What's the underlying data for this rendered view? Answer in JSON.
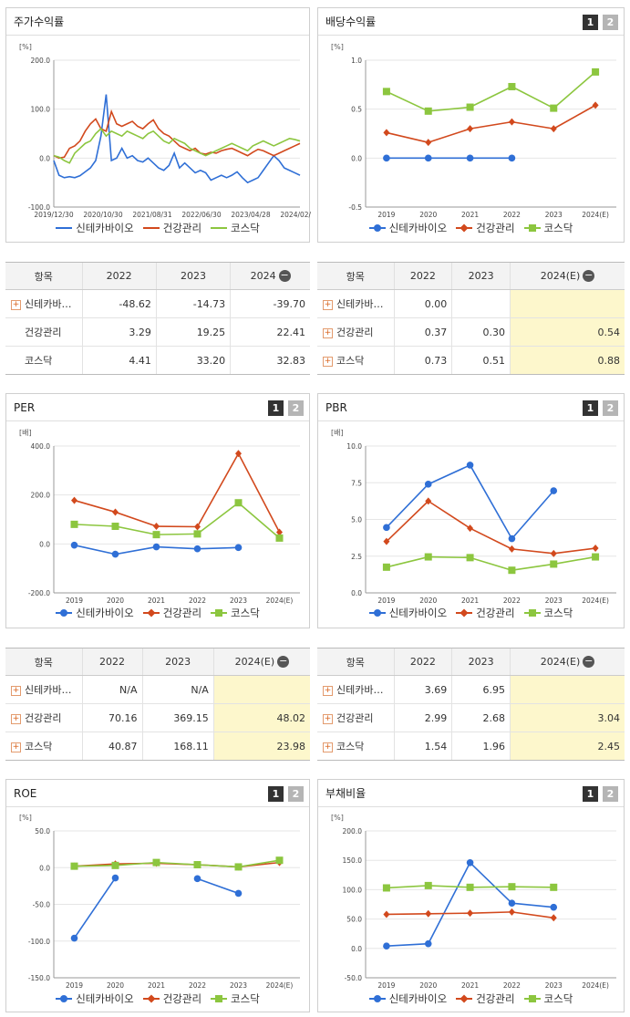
{
  "colors": {
    "blue": "#2f6fd6",
    "red": "#d2491d",
    "green": "#8cc63f"
  },
  "charts": [
    {
      "id": "stock",
      "title": "주가수익률",
      "unit": "[%]",
      "tabs": [],
      "chart_data": {
        "type": "line",
        "ylim": [
          -100,
          200
        ],
        "yticks": [
          "200.0",
          "100.0",
          "0.0",
          "-100.0"
        ],
        "xticks": [
          "2019/12/30",
          "2020/10/30",
          "2021/08/31",
          "2022/06/30",
          "2023/04/28",
          "2024/02/29"
        ],
        "series": [
          {
            "name": "신테카바이오",
            "color": "#2f6fd6",
            "values": [
              -5,
              -35,
              -40,
              -38,
              -40,
              -36,
              -28,
              -20,
              -5,
              45,
              130,
              -5,
              0,
              20,
              0,
              5,
              -5,
              -8,
              0,
              -10,
              -20,
              -25,
              -15,
              10,
              -20,
              -10,
              -20,
              -30,
              -25,
              -30,
              -45,
              -40,
              -35,
              -40,
              -35,
              -28,
              -40,
              -50,
              -45,
              -40,
              -25,
              -10,
              5,
              -5,
              -20,
              -25,
              -30,
              -35
            ]
          },
          {
            "name": "건강관리",
            "color": "#d2491d",
            "values": [
              5,
              0,
              2,
              20,
              25,
              35,
              55,
              70,
              80,
              60,
              55,
              95,
              70,
              65,
              70,
              75,
              65,
              60,
              70,
              78,
              60,
              50,
              45,
              35,
              25,
              20,
              15,
              20,
              10,
              8,
              12,
              10,
              15,
              18,
              20,
              15,
              10,
              5,
              12,
              18,
              15,
              10,
              5,
              10,
              15,
              20,
              25,
              30
            ]
          },
          {
            "name": "코스닥",
            "color": "#8cc63f",
            "values": [
              5,
              2,
              -5,
              -10,
              10,
              20,
              30,
              35,
              50,
              60,
              45,
              55,
              50,
              45,
              55,
              50,
              45,
              40,
              50,
              55,
              45,
              35,
              30,
              40,
              35,
              30,
              20,
              15,
              10,
              5,
              10,
              15,
              20,
              25,
              30,
              25,
              20,
              15,
              25,
              30,
              35,
              30,
              25,
              30,
              35,
              40,
              38,
              35
            ]
          }
        ]
      }
    },
    {
      "id": "dividend",
      "title": "배당수익률",
      "unit": "[%]",
      "tabs": [
        "1",
        "2"
      ],
      "chart_data": {
        "type": "line",
        "ylim": [
          -0.5,
          1.0
        ],
        "yticks": [
          "1.0",
          "0.5",
          "0.0",
          "-0.5"
        ],
        "categories": [
          "2019",
          "2020",
          "2021",
          "2022",
          "2023",
          "2024(E)"
        ],
        "series": [
          {
            "name": "신테카바이오",
            "color": "#2f6fd6",
            "marker": "circle",
            "values": [
              0,
              0,
              0,
              0,
              null,
              null
            ]
          },
          {
            "name": "건강관리",
            "color": "#d2491d",
            "marker": "diamond",
            "values": [
              0.26,
              0.16,
              0.3,
              0.37,
              0.3,
              0.54
            ]
          },
          {
            "name": "코스닥",
            "color": "#8cc63f",
            "marker": "square",
            "values": [
              0.68,
              0.48,
              0.52,
              0.73,
              0.51,
              0.88
            ]
          }
        ]
      }
    },
    {
      "id": "per",
      "title": "PER",
      "unit": "[배]",
      "tabs": [
        "1",
        "2"
      ],
      "chart_data": {
        "type": "line",
        "ylim": [
          -200,
          400
        ],
        "yticks": [
          "400.0",
          "200.0",
          "0.0",
          "-200.0"
        ],
        "categories": [
          "2019",
          "2020",
          "2021",
          "2022",
          "2023",
          "2024(E)"
        ],
        "series": [
          {
            "name": "신테카바이오",
            "color": "#2f6fd6",
            "marker": "circle",
            "values": [
              -5,
              -42,
              -12,
              -20,
              -15,
              null
            ]
          },
          {
            "name": "건강관리",
            "color": "#d2491d",
            "marker": "diamond",
            "values": [
              178,
              130,
              72,
              70.16,
              369.15,
              48.02
            ]
          },
          {
            "name": "코스닥",
            "color": "#8cc63f",
            "marker": "square",
            "values": [
              80,
              72,
              38,
              40.87,
              168.11,
              23.98
            ]
          }
        ]
      }
    },
    {
      "id": "pbr",
      "title": "PBR",
      "unit": "[배]",
      "tabs": [
        "1",
        "2"
      ],
      "chart_data": {
        "type": "line",
        "ylim": [
          0,
          10
        ],
        "yticks": [
          "10.0",
          "7.5",
          "5.0",
          "2.5",
          "0.0"
        ],
        "categories": [
          "2019",
          "2020",
          "2021",
          "2022",
          "2023",
          "2024(E)"
        ],
        "series": [
          {
            "name": "신테카바이오",
            "color": "#2f6fd6",
            "marker": "circle",
            "values": [
              4.45,
              7.4,
              8.7,
              3.69,
              6.95,
              null
            ]
          },
          {
            "name": "건강관리",
            "color": "#d2491d",
            "marker": "diamond",
            "values": [
              3.5,
              6.25,
              4.4,
              2.99,
              2.68,
              3.04
            ]
          },
          {
            "name": "코스닥",
            "color": "#8cc63f",
            "marker": "square",
            "values": [
              1.75,
              2.45,
              2.4,
              1.54,
              1.96,
              2.45
            ]
          }
        ]
      }
    },
    {
      "id": "roe",
      "title": "ROE",
      "unit": "[%]",
      "tabs": [
        "1",
        "2"
      ],
      "chart_data": {
        "type": "line",
        "ylim": [
          -150,
          50
        ],
        "yticks": [
          "50.0",
          "0.0",
          "-50.0",
          "-100.0",
          "-150.0"
        ],
        "categories": [
          "2019",
          "2020",
          "2021",
          "2022",
          "2023",
          "2024(E)"
        ],
        "series": [
          {
            "name": "신테카바이오",
            "color": "#2f6fd6",
            "marker": "circle",
            "values": [
              -96,
              -14,
              null,
              -15,
              -35,
              null
            ]
          },
          {
            "name": "건강관리",
            "color": "#d2491d",
            "marker": "diamond",
            "values": [
              2,
              5,
              6,
              4,
              1,
              7
            ]
          },
          {
            "name": "코스닥",
            "color": "#8cc63f",
            "marker": "square",
            "values": [
              2,
              3,
              7,
              4,
              1,
              10
            ]
          }
        ]
      }
    },
    {
      "id": "debt",
      "title": "부채비율",
      "unit": "[%]",
      "tabs": [
        "1",
        "2"
      ],
      "chart_data": {
        "type": "line",
        "ylim": [
          -50,
          200
        ],
        "yticks": [
          "200.0",
          "150.0",
          "100.0",
          "50.0",
          "0.0",
          "-50.0"
        ],
        "categories": [
          "2019",
          "2020",
          "2021",
          "2022",
          "2023",
          "2024(E)"
        ],
        "series": [
          {
            "name": "신테카바이오",
            "color": "#2f6fd6",
            "marker": "circle",
            "values": [
              4,
              8,
              146,
              77,
              70,
              null
            ]
          },
          {
            "name": "건강관리",
            "color": "#d2491d",
            "marker": "diamond",
            "values": [
              58,
              59,
              60,
              62,
              52,
              null
            ]
          },
          {
            "name": "코스닥",
            "color": "#8cc63f",
            "marker": "square",
            "values": [
              103,
              107,
              104,
              105,
              104,
              null
            ]
          }
        ]
      }
    }
  ],
  "tables": [
    {
      "id": "t_stock",
      "head": [
        "항목",
        "2022",
        "2023",
        "2024"
      ],
      "minus": true,
      "est": false,
      "rows": [
        {
          "label": "신테카바…",
          "plus": true,
          "values": [
            "-48.62",
            "-14.73",
            "-39.70"
          ]
        },
        {
          "label": "건강관리",
          "plus": false,
          "values": [
            "3.29",
            "19.25",
            "22.41"
          ]
        },
        {
          "label": "코스닥",
          "plus": false,
          "values": [
            "4.41",
            "33.20",
            "32.83"
          ]
        }
      ]
    },
    {
      "id": "t_div",
      "head": [
        "항목",
        "2022",
        "2023",
        "2024(E)"
      ],
      "minus": true,
      "est": true,
      "rows": [
        {
          "label": "신테카바…",
          "plus": true,
          "values": [
            "0.00",
            "",
            ""
          ]
        },
        {
          "label": "건강관리",
          "plus": true,
          "values": [
            "0.37",
            "0.30",
            "0.54"
          ]
        },
        {
          "label": "코스닥",
          "plus": true,
          "values": [
            "0.73",
            "0.51",
            "0.88"
          ]
        }
      ]
    },
    {
      "id": "t_per",
      "head": [
        "항목",
        "2022",
        "2023",
        "2024(E)"
      ],
      "minus": true,
      "est": true,
      "rows": [
        {
          "label": "신테카바…",
          "plus": true,
          "values": [
            "N/A",
            "N/A",
            ""
          ]
        },
        {
          "label": "건강관리",
          "plus": true,
          "values": [
            "70.16",
            "369.15",
            "48.02"
          ]
        },
        {
          "label": "코스닥",
          "plus": true,
          "values": [
            "40.87",
            "168.11",
            "23.98"
          ]
        }
      ]
    },
    {
      "id": "t_pbr",
      "head": [
        "항목",
        "2022",
        "2023",
        "2024(E)"
      ],
      "minus": true,
      "est": true,
      "rows": [
        {
          "label": "신테카바…",
          "plus": true,
          "values": [
            "3.69",
            "6.95",
            ""
          ]
        },
        {
          "label": "건강관리",
          "plus": true,
          "values": [
            "2.99",
            "2.68",
            "3.04"
          ]
        },
        {
          "label": "코스닥",
          "plus": true,
          "values": [
            "1.54",
            "1.96",
            "2.45"
          ]
        }
      ]
    }
  ]
}
